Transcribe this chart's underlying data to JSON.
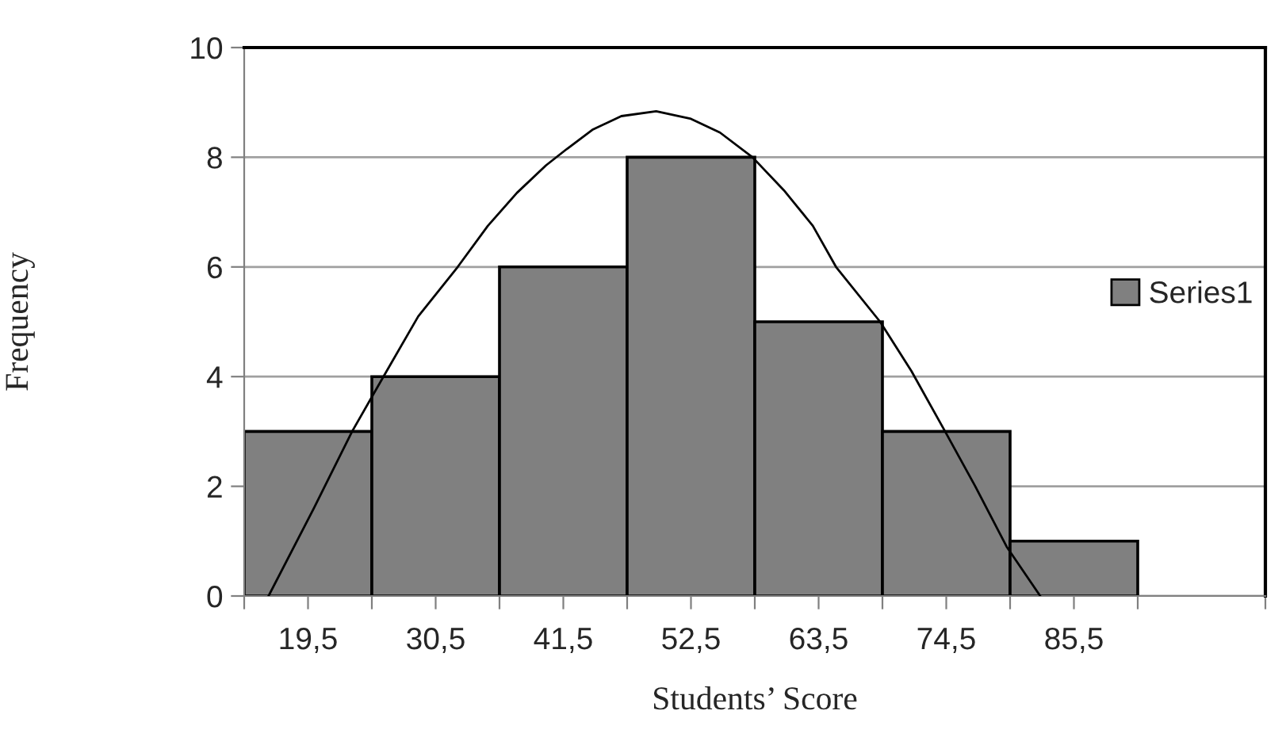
{
  "chart_data": {
    "type": "histogram",
    "xlabel": "Students’ Score",
    "ylabel": "Frequency",
    "bins": [
      14,
      25,
      36,
      47,
      58,
      69,
      80,
      91
    ],
    "series": [
      {
        "name": "Series1",
        "color": "#808080",
        "values": [
          3,
          4,
          6,
          8,
          5,
          3,
          1
        ]
      },
      {
        "type": "line",
        "color": "#000000",
        "x": [
          16.1,
          20.0,
          23.3,
          26.0,
          29.0,
          32.4,
          35.0,
          37.5,
          40.0,
          41.8,
          44.0,
          46.5,
          49.5,
          52.5,
          55.0,
          57.8,
          60.5,
          63.0,
          65.0,
          68.8,
          71.5,
          74.4,
          77.0,
          79.7,
          82.6
        ],
        "values": [
          0,
          1.6,
          3,
          4,
          5.1,
          6,
          6.75,
          7.35,
          7.85,
          8.15,
          8.5,
          8.75,
          8.84,
          8.7,
          8.45,
          8,
          7.4,
          6.75,
          6,
          5,
          4.1,
          3,
          2.0,
          0.9,
          0
        ]
      }
    ],
    "xlim": [
      14,
      102
    ],
    "xticks": [
      {
        "value": 14,
        "label": null
      },
      {
        "value": 19.5,
        "label": "19,5"
      },
      {
        "value": 25,
        "label": null
      },
      {
        "value": 30.5,
        "label": "30,5"
      },
      {
        "value": 36,
        "label": null
      },
      {
        "value": 41.5,
        "label": "41,5"
      },
      {
        "value": 47,
        "label": null
      },
      {
        "value": 52.5,
        "label": "52,5"
      },
      {
        "value": 58,
        "label": null
      },
      {
        "value": 63.5,
        "label": "63,5"
      },
      {
        "value": 69,
        "label": null
      },
      {
        "value": 74.5,
        "label": "74,5"
      },
      {
        "value": 80,
        "label": null
      },
      {
        "value": 85.5,
        "label": "85,5"
      },
      {
        "value": 91,
        "label": null
      },
      {
        "value": 102,
        "label": null
      }
    ],
    "ylim": [
      0,
      10
    ],
    "yticks": [
      0,
      2,
      4,
      6,
      8,
      10
    ],
    "grid": "y",
    "legend": "right"
  }
}
